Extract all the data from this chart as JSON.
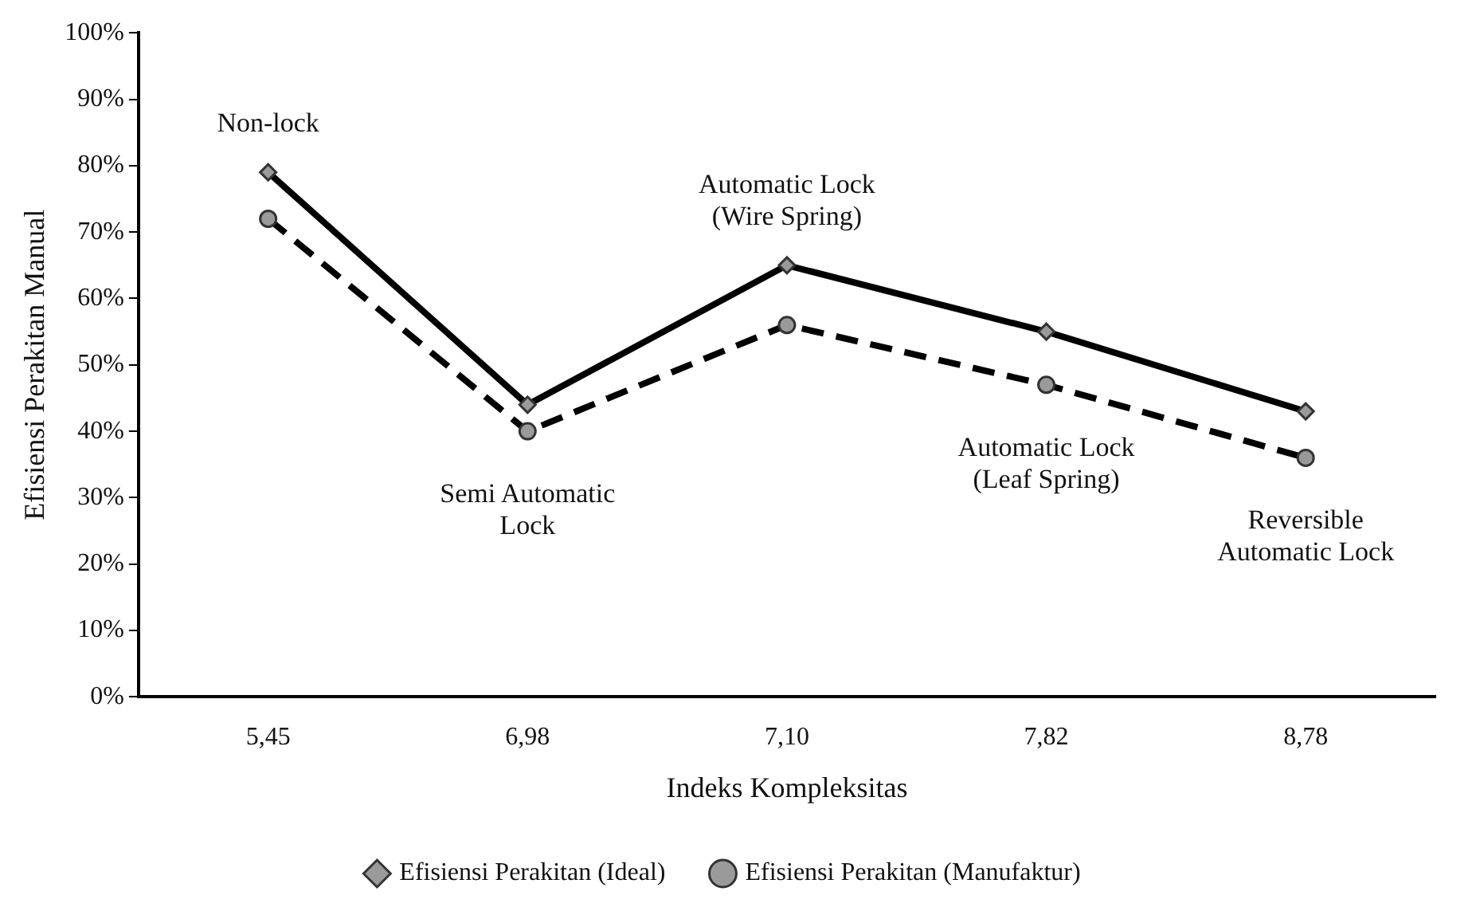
{
  "chart_data": {
    "type": "line",
    "xlabel": "Indeks Kompleksitas",
    "ylabel": "Efisiensi Perakitan Manual",
    "categories": [
      "5,45",
      "6,98",
      "7,10",
      "7,82",
      "8,78"
    ],
    "series": [
      {
        "name": "Efisiensi Perakitan (Ideal)",
        "color": "#000000",
        "marker": "diamond",
        "line_style": "solid",
        "values": [
          79,
          44,
          65,
          55,
          43
        ]
      },
      {
        "name": "Efisiensi Perakitan (Manufaktur)",
        "color": "#000000",
        "marker": "circle",
        "line_style": "dashed",
        "values": [
          72,
          40,
          56,
          47,
          36
        ]
      }
    ],
    "ylim": [
      0,
      100
    ],
    "yticks": [
      {
        "value": 0,
        "label": "0%"
      },
      {
        "value": 10,
        "label": "10%"
      },
      {
        "value": 20,
        "label": "20%"
      },
      {
        "value": 30,
        "label": "30%"
      },
      {
        "value": 40,
        "label": "40%"
      },
      {
        "value": 50,
        "label": "50%"
      },
      {
        "value": 60,
        "label": "60%"
      },
      {
        "value": 70,
        "label": "70%"
      },
      {
        "value": 80,
        "label": "80%"
      },
      {
        "value": 90,
        "label": "90%"
      },
      {
        "value": 100,
        "label": "100%"
      }
    ],
    "grid": false,
    "legend": "bottom",
    "annotations": [
      {
        "text": "Non-lock",
        "x": "5,45",
        "y": 79
      },
      {
        "text": "Semi Automatic\nLock",
        "x": "6,98",
        "y": 40
      },
      {
        "text": "Automatic Lock\n(Wire Spring)",
        "x": "7,10",
        "y": 65
      },
      {
        "text": "Automatic Lock\n(Leaf Spring)",
        "x": "7,82",
        "y": 47
      },
      {
        "text": "Reversible\nAutomatic Lock",
        "x": "8,78",
        "y": 36
      }
    ]
  }
}
